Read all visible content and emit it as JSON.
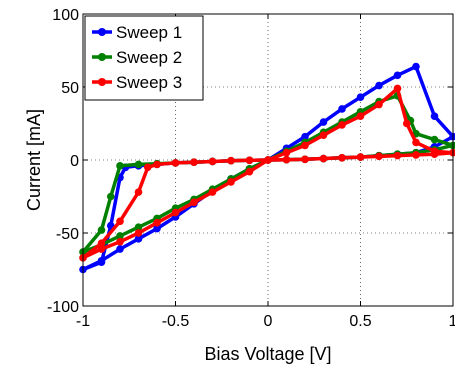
{
  "chart_data": {
    "type": "line",
    "xlabel": "Bias Voltage [V]",
    "ylabel": "Current [mA]",
    "xlim": [
      -1,
      1
    ],
    "ylim": [
      -100,
      100
    ],
    "x_ticks": [
      -1,
      -0.5,
      0,
      0.5,
      1
    ],
    "y_ticks": [
      -100,
      -50,
      0,
      50,
      100
    ],
    "x_tick_labels": [
      "-1",
      "-0.5",
      "0",
      "0.5",
      "1"
    ],
    "y_tick_labels": [
      "-100",
      "-50",
      "0",
      "50",
      "100"
    ],
    "grid": true,
    "grid_style": "dotted",
    "legend_position": "top-left",
    "marker": "circle",
    "series": [
      {
        "name": "Sweep 1",
        "color": "#0000ff",
        "x": [
          0,
          0.1,
          0.2,
          0.3,
          0.4,
          0.5,
          0.6,
          0.7,
          0.8,
          0.9,
          1.0,
          0.9,
          0.8,
          0.7,
          0.6,
          0.5,
          0.4,
          0.3,
          0.2,
          0.1,
          0,
          -0.1,
          -0.2,
          -0.3,
          -0.4,
          -0.5,
          -0.6,
          -0.7,
          -0.77,
          -0.8,
          -0.85,
          -0.9,
          -1.0,
          -0.9,
          -0.8,
          -0.7,
          -0.6,
          -0.5,
          -0.4,
          -0.3,
          -0.2,
          -0.1,
          0
        ],
        "y": [
          0,
          8,
          16,
          26,
          35,
          43,
          51,
          58,
          64,
          30,
          16,
          9,
          5,
          4,
          3,
          2,
          1.5,
          1,
          0.5,
          0.2,
          0,
          -0.2,
          -0.5,
          -1,
          -1.5,
          -2,
          -3,
          -4,
          -5,
          -12,
          -45,
          -70,
          -75,
          -69,
          -61,
          -54,
          -47,
          -39,
          -30,
          -21,
          -13,
          -6,
          0
        ]
      },
      {
        "name": "Sweep 2",
        "color": "#008000",
        "x": [
          0,
          0.1,
          0.2,
          0.3,
          0.4,
          0.5,
          0.6,
          0.7,
          0.77,
          0.8,
          0.9,
          1.0,
          0.9,
          0.8,
          0.7,
          0.6,
          0.5,
          0.4,
          0.3,
          0.2,
          0.1,
          0,
          -0.1,
          -0.2,
          -0.3,
          -0.4,
          -0.5,
          -0.6,
          -0.7,
          -0.8,
          -0.85,
          -0.9,
          -1.0,
          -0.9,
          -0.8,
          -0.7,
          -0.6,
          -0.5,
          -0.4,
          -0.3,
          -0.2,
          -0.1,
          0
        ],
        "y": [
          0,
          6,
          12,
          19,
          26,
          33,
          40,
          44,
          27,
          18,
          14,
          10,
          7,
          5,
          4,
          3,
          2,
          1.5,
          1,
          0.5,
          0.2,
          0,
          -0.2,
          -0.5,
          -1,
          -1.5,
          -2,
          -2.5,
          -3,
          -4,
          -25,
          -48,
          -63,
          -58,
          -52,
          -46,
          -40,
          -33,
          -27,
          -20,
          -13,
          -6,
          0
        ]
      },
      {
        "name": "Sweep 3",
        "color": "#ff0000",
        "x": [
          0,
          0.1,
          0.2,
          0.3,
          0.4,
          0.5,
          0.6,
          0.7,
          0.75,
          0.8,
          0.9,
          1.0,
          0.9,
          0.8,
          0.7,
          0.6,
          0.5,
          0.4,
          0.3,
          0.2,
          0.1,
          0,
          -0.1,
          -0.2,
          -0.3,
          -0.4,
          -0.5,
          -0.6,
          -0.65,
          -0.7,
          -0.8,
          -0.9,
          -1.0,
          -0.9,
          -0.8,
          -0.7,
          -0.6,
          -0.5,
          -0.4,
          -0.3,
          -0.2,
          -0.1,
          0
        ],
        "y": [
          0,
          5,
          10,
          17,
          24,
          30,
          38,
          49,
          25,
          12,
          6,
          5,
          4,
          3.5,
          3,
          2.5,
          2,
          1.5,
          1,
          0.5,
          0.2,
          0,
          -0.2,
          -0.5,
          -1,
          -1.5,
          -2,
          -3,
          -5,
          -22,
          -42,
          -57,
          -67,
          -61,
          -56,
          -50,
          -43,
          -36,
          -29,
          -22,
          -15,
          -8,
          0
        ]
      }
    ]
  }
}
